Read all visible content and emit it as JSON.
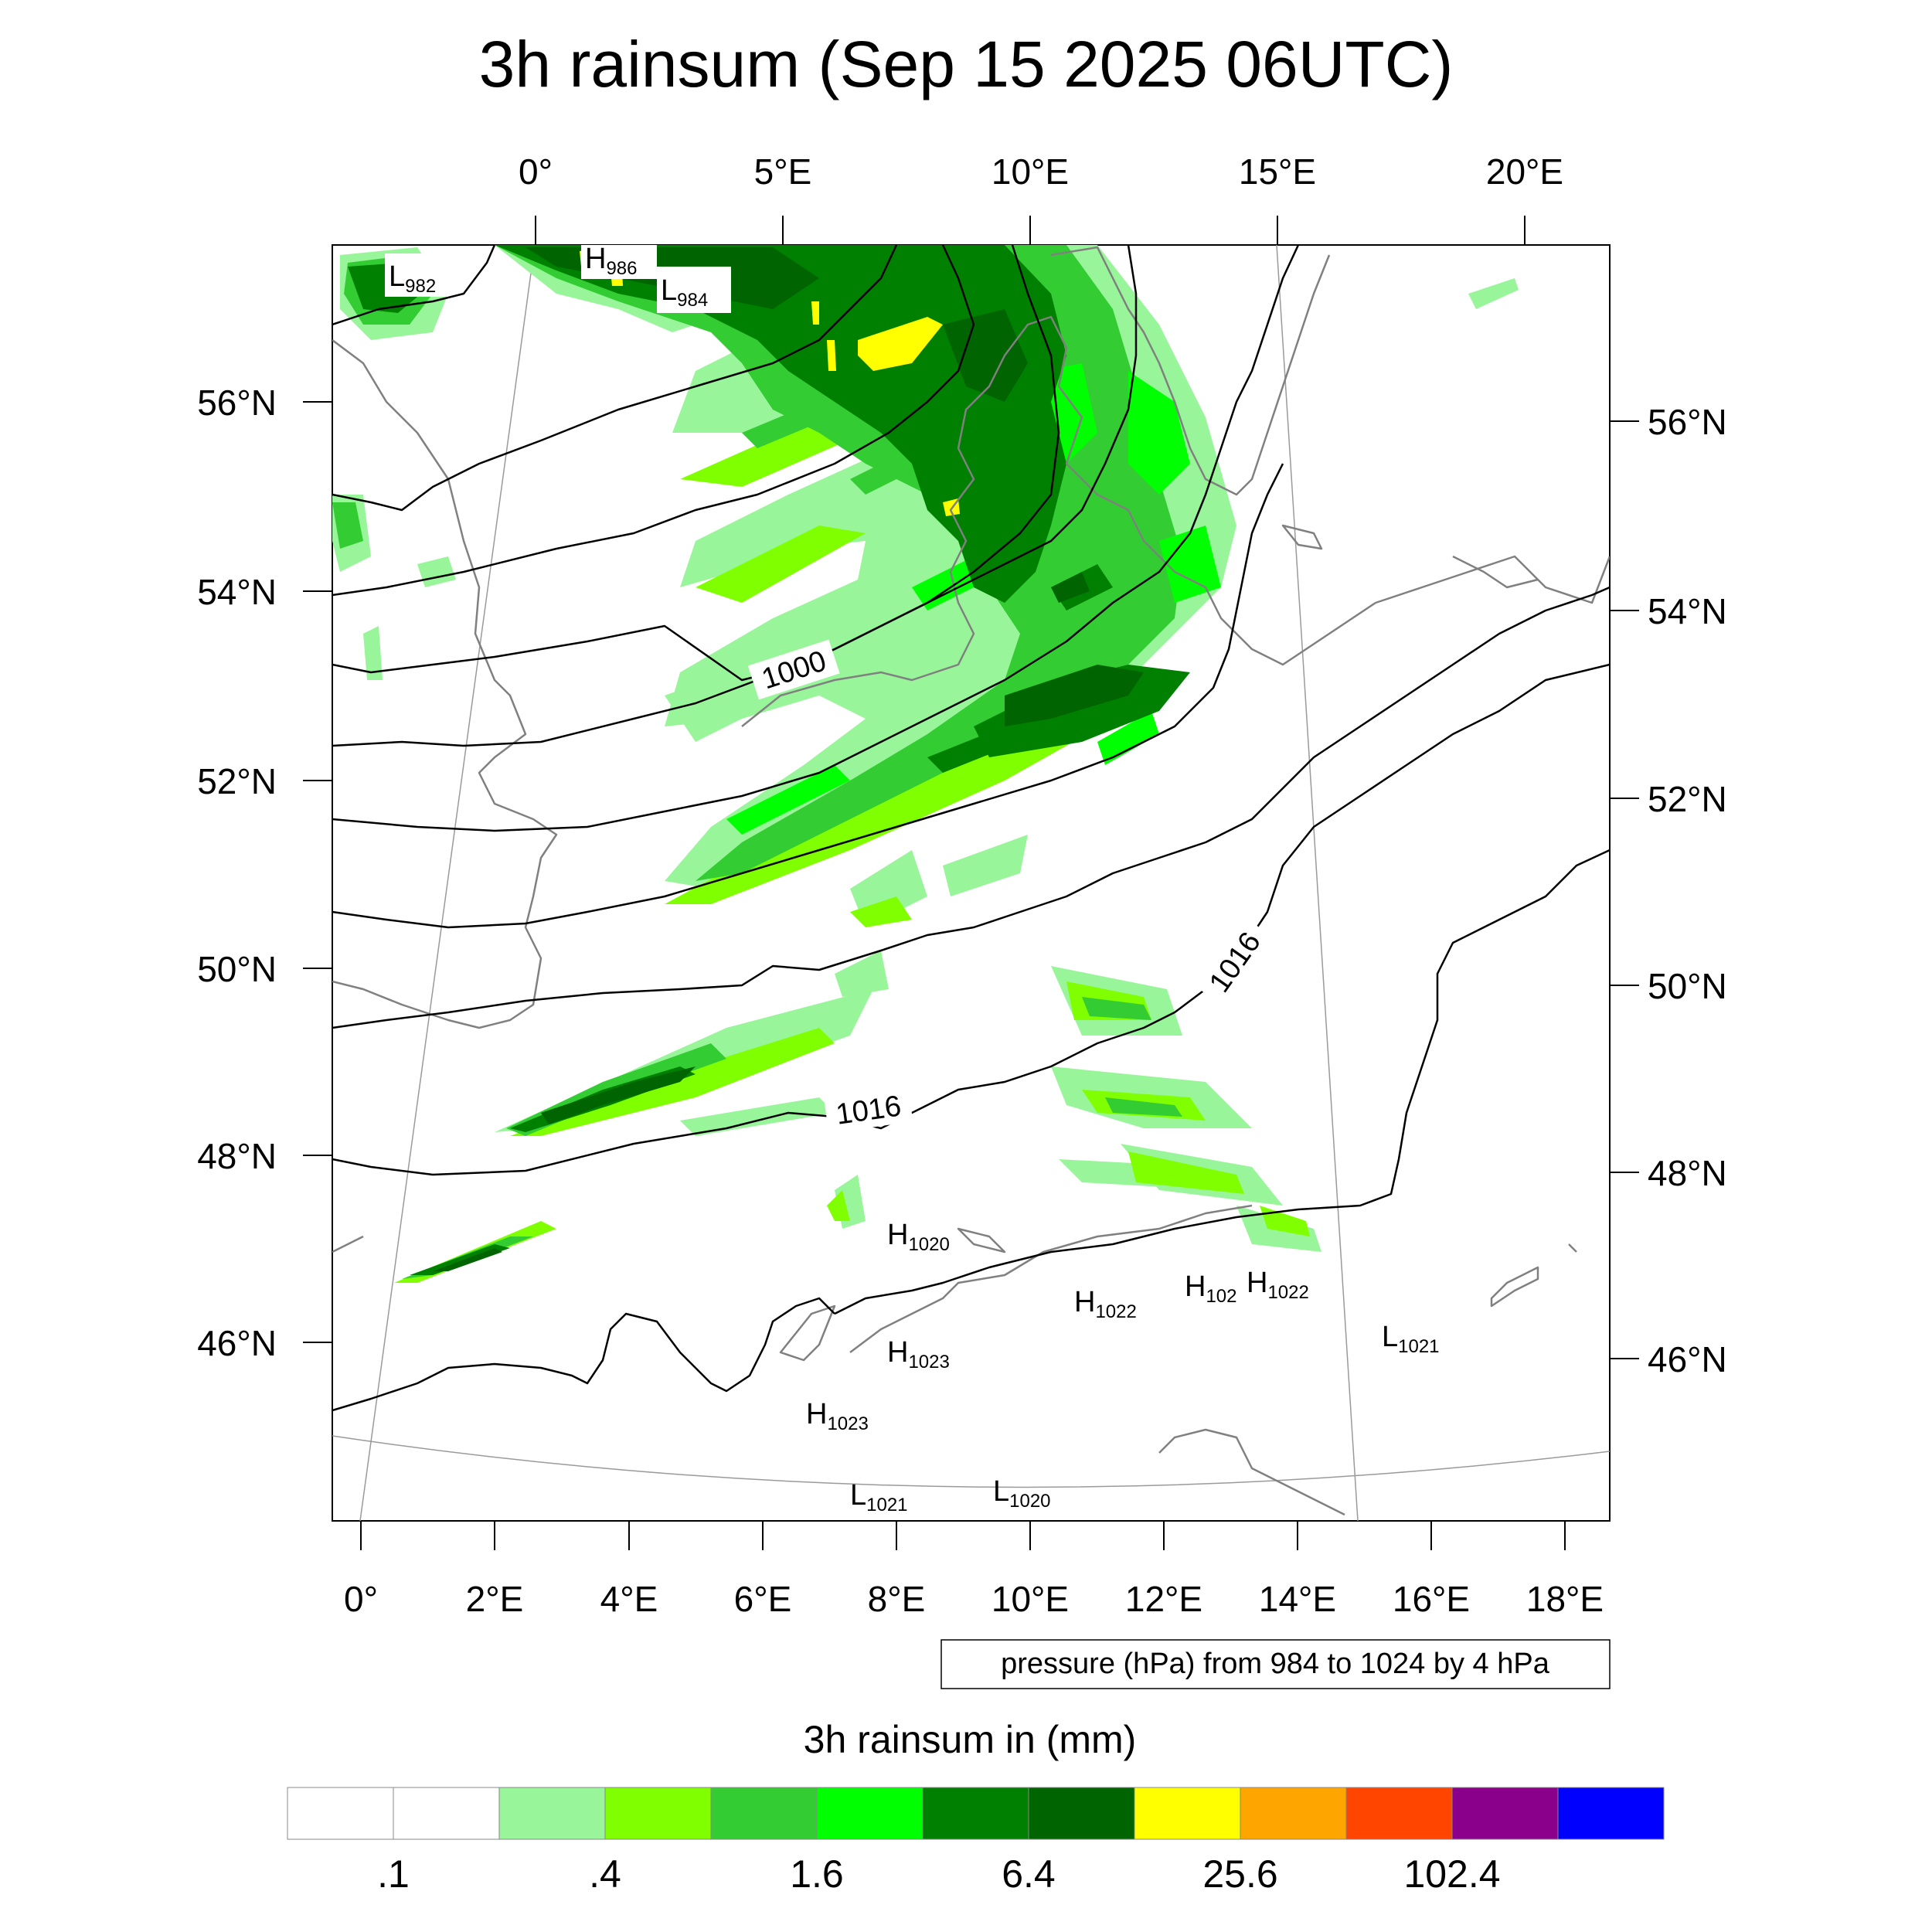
{
  "title": "3h rainsum (Sep 15 2025 06UTC)",
  "axes": {
    "top_lon_labels": [
      "0°",
      "5°E",
      "10°E",
      "15°E",
      "20°E"
    ],
    "bottom_lon_labels": [
      "0°",
      "2°E",
      "4°E",
      "6°E",
      "8°E",
      "10°E",
      "12°E",
      "14°E",
      "16°E",
      "18°E"
    ],
    "left_lat_labels": [
      "56°N",
      "54°N",
      "52°N",
      "50°N",
      "48°N",
      "46°N"
    ],
    "right_lat_labels": [
      "56°N",
      "54°N",
      "52°N",
      "50°N",
      "48°N",
      "46°N"
    ]
  },
  "contours": {
    "note": "pressure (hPa) from 984 to 1024 by 4 hPa",
    "labels": [
      "1000",
      "1016",
      "1016"
    ]
  },
  "pressure_centers": [
    {
      "type": "L",
      "value": "982"
    },
    {
      "type": "H",
      "value": "986"
    },
    {
      "type": "L",
      "value": "984"
    },
    {
      "type": "H",
      "value": "1020"
    },
    {
      "type": "H",
      "value": "1022"
    },
    {
      "type": "H",
      "value": "102"
    },
    {
      "type": "H",
      "value": "1022"
    },
    {
      "type": "H",
      "value": "1023"
    },
    {
      "type": "L",
      "value": "1021"
    },
    {
      "type": "H",
      "value": "1023"
    },
    {
      "type": "L",
      "value": "1021"
    },
    {
      "type": "L",
      "value": "1020"
    }
  ],
  "colorbar": {
    "title": "3h rainsum in (mm)",
    "colors": [
      "#ffffff",
      "#ffffff",
      "#99f599",
      "#80ff00",
      "#33cc33",
      "#00ff00",
      "#008000",
      "#006400",
      "#ffff00",
      "#ffa500",
      "#ff4500",
      "#8b008b",
      "#0000ff"
    ],
    "labels": [
      ".1",
      ".4",
      "1.6",
      "6.4",
      "25.6",
      "102.4"
    ]
  },
  "colors": {
    "rain_light": "#99f599",
    "rain_lime": "#80ff00",
    "rain_green": "#33cc33",
    "rain_bright": "#00ff00",
    "rain_dark": "#008000",
    "rain_darker": "#006400",
    "rain_heavy": "#ffff00",
    "coast": "#808080",
    "isobar": "#000000"
  }
}
